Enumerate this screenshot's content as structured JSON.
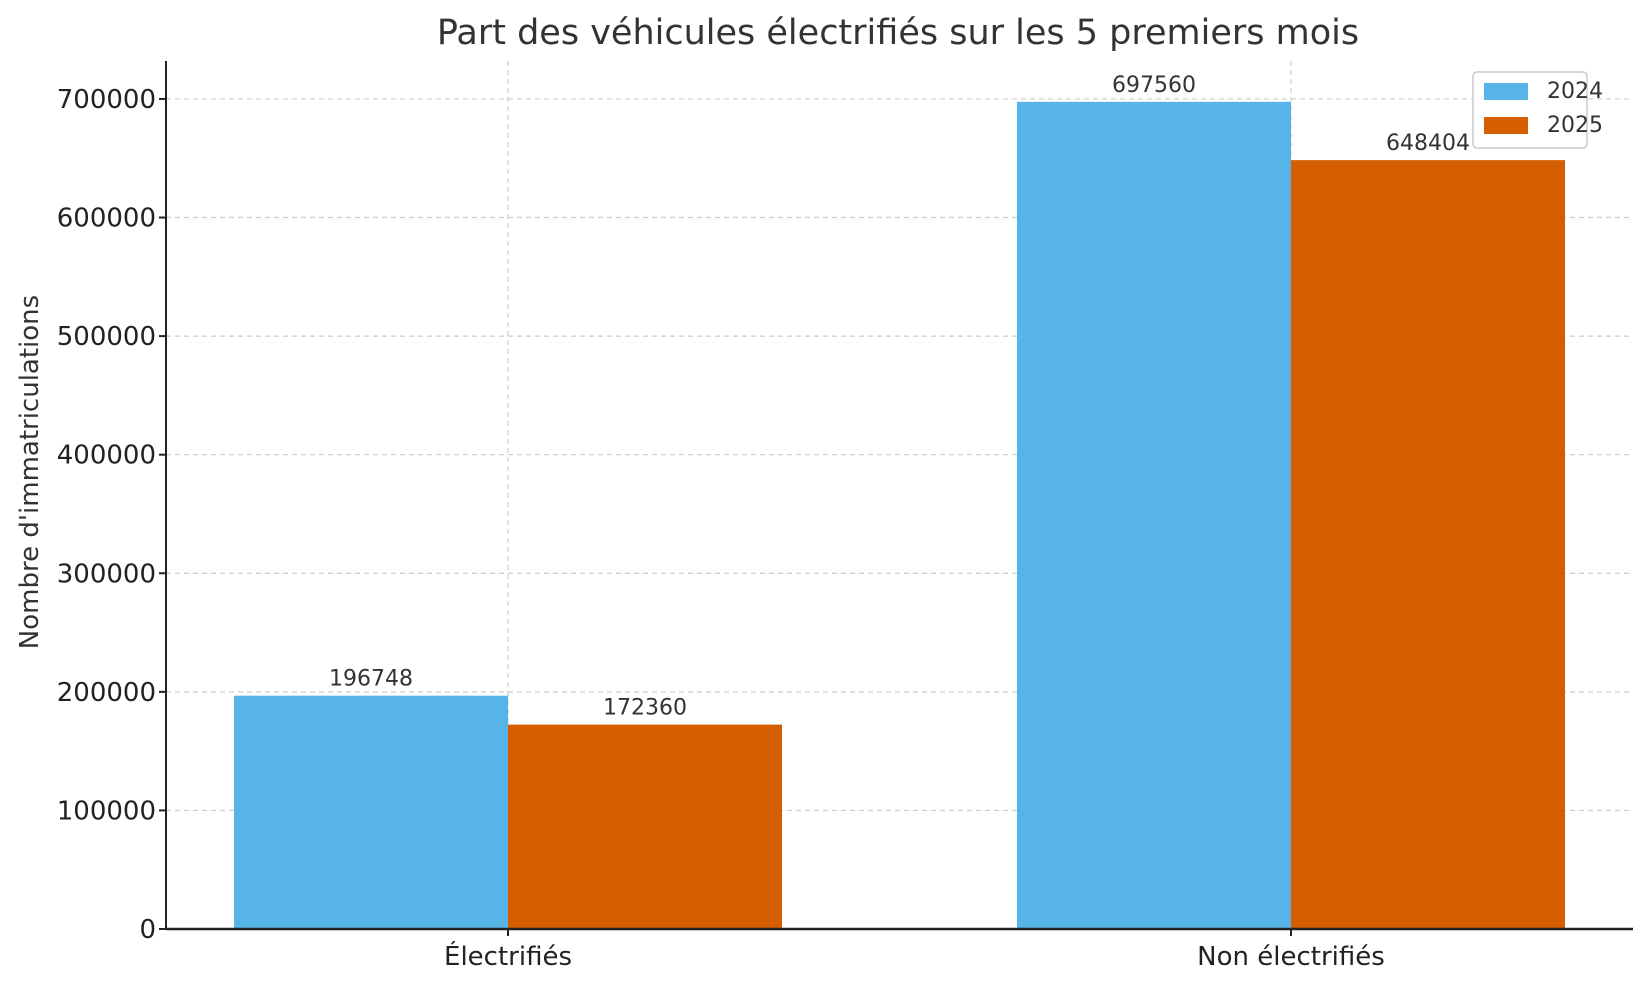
{
  "chart_data": {
    "type": "bar",
    "title": "Part des véhicules électrifiés sur les 5 premiers mois",
    "xlabel": "",
    "ylabel": "Nombre d'immatriculations",
    "categories": [
      "Électrifiés",
      "Non électrifiés"
    ],
    "series": [
      {
        "name": "2024",
        "color": "#56B4E9",
        "values": [
          196748,
          697560
        ]
      },
      {
        "name": "2025",
        "color": "#D55E00",
        "values": [
          172360,
          648404
        ]
      }
    ],
    "data_labels": [
      [
        "196748",
        "697560"
      ],
      [
        "172360",
        "648404"
      ]
    ],
    "ylim": [
      0,
      732000
    ],
    "yticks": [
      0,
      100000,
      200000,
      300000,
      400000,
      500000,
      600000,
      700000
    ],
    "ytick_labels": [
      "0",
      "100000",
      "200000",
      "300000",
      "400000",
      "500000",
      "600000",
      "700000"
    ],
    "grid": true,
    "grid_style": "dashed",
    "legend_position": "upper right"
  }
}
